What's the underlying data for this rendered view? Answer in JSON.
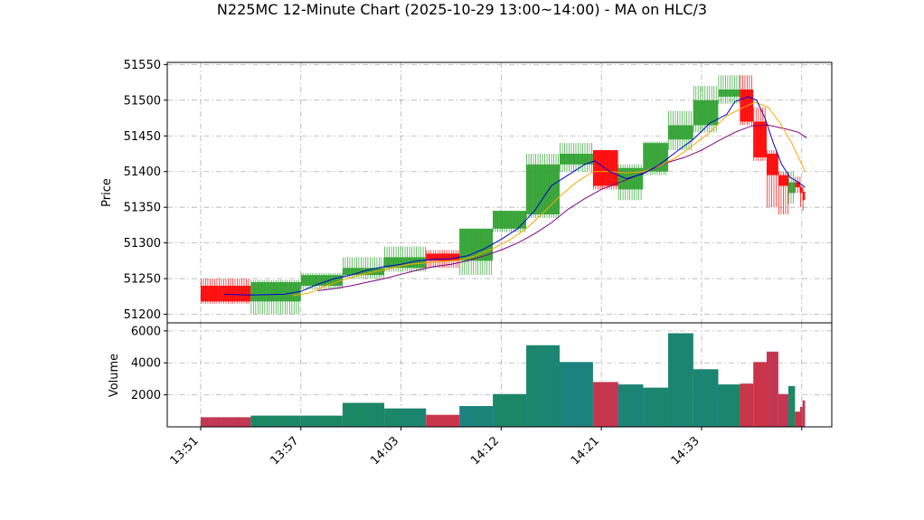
{
  "chart_data": {
    "type": "candlestick",
    "title": "N225MC 12-Minute Chart (2025-10-29 13:00~14:00) - MA on HLC/3",
    "ylabel_price": "Price",
    "ylabel_volume": "Volume",
    "price_ylim": [
      51188,
      51553
    ],
    "price_ticks": [
      51200,
      51250,
      51300,
      51350,
      51400,
      51450,
      51500,
      51550
    ],
    "volume_ylim": [
      0,
      6500
    ],
    "volume_ticks": [
      2000,
      4000,
      6000
    ],
    "x_tick_labels": [
      "13:51",
      "13:57",
      "14:03",
      "14:12",
      "14:21",
      "14:33"
    ],
    "x_tick_positions": [
      0,
      6,
      12,
      18,
      24,
      30
    ],
    "x_last_tick": 36,
    "x_range": [
      -2,
      37.8
    ],
    "up_color": "#2ca02c",
    "down_color": "#ff0000",
    "up_volume_color": "#1f77b4",
    "down_volume_color": "#d62728",
    "ma_colors": [
      "#0000cd",
      "#ffa500",
      "#800080"
    ],
    "candles": [
      {
        "start": 0,
        "end": 3,
        "open": 51240,
        "high": 51250,
        "low": 51215,
        "close": 51218,
        "volume": 600
      },
      {
        "start": 3,
        "end": 6,
        "open": 51218,
        "high": 51248,
        "low": 51200,
        "close": 51245,
        "volume": 700
      },
      {
        "start": 6,
        "end": 8.5,
        "open": 51240,
        "high": 51258,
        "low": 51235,
        "close": 51255,
        "volume": 700
      },
      {
        "start": 8.5,
        "end": 11,
        "open": 51255,
        "high": 51280,
        "low": 51250,
        "close": 51265,
        "volume": 1500
      },
      {
        "start": 11,
        "end": 13.5,
        "open": 51265,
        "high": 51295,
        "low": 51260,
        "close": 51280,
        "volume": 1150
      },
      {
        "start": 13.5,
        "end": 15.5,
        "open": 51285,
        "high": 51290,
        "low": 51265,
        "close": 51275,
        "volume": 750
      },
      {
        "start": 15.5,
        "end": 17.5,
        "open": 51275,
        "high": 51320,
        "low": 51255,
        "close": 51320,
        "volume": 1300
      },
      {
        "start": 17.5,
        "end": 19.5,
        "open": 51320,
        "high": 51345,
        "low": 51315,
        "close": 51345,
        "volume": 2050
      },
      {
        "start": 19.5,
        "end": 21.5,
        "open": 51340,
        "high": 51425,
        "low": 51335,
        "close": 51410,
        "volume": 5100
      },
      {
        "start": 21.5,
        "end": 23.5,
        "open": 51410,
        "high": 51440,
        "low": 51400,
        "close": 51425,
        "volume": 4050
      },
      {
        "start": 23.5,
        "end": 25.0,
        "open": 51430,
        "high": 51430,
        "low": 51375,
        "close": 51380,
        "volume": 2800
      },
      {
        "start": 25.0,
        "end": 26.5,
        "open": 51375,
        "high": 51410,
        "low": 51360,
        "close": 51405,
        "volume": 2650
      },
      {
        "start": 26.5,
        "end": 28.0,
        "open": 51400,
        "high": 51442,
        "low": 51395,
        "close": 51440,
        "volume": 2450
      },
      {
        "start": 28.0,
        "end": 29.5,
        "open": 51445,
        "high": 51485,
        "low": 51430,
        "close": 51465,
        "volume": 5850
      },
      {
        "start": 29.5,
        "end": 31.0,
        "open": 51465,
        "high": 51520,
        "low": 51455,
        "close": 51500,
        "volume": 3600
      },
      {
        "start": 31.0,
        "end": 32.3,
        "open": 51505,
        "high": 51535,
        "low": 51495,
        "close": 51515,
        "volume": 2650
      },
      {
        "start": 32.3,
        "end": 33.1,
        "open": 51515,
        "high": 51535,
        "low": 51465,
        "close": 51470,
        "volume": 2700
      },
      {
        "start": 33.1,
        "end": 33.9,
        "open": 51470,
        "high": 51490,
        "low": 51415,
        "close": 51420,
        "volume": 4050
      },
      {
        "start": 33.9,
        "end": 34.6,
        "open": 51425,
        "high": 51430,
        "low": 51350,
        "close": 51395,
        "volume": 4700
      },
      {
        "start": 34.6,
        "end": 35.2,
        "open": 51395,
        "high": 51400,
        "low": 51340,
        "close": 51380,
        "volume": 2050
      },
      {
        "start": 35.2,
        "end": 35.6,
        "open": 51370,
        "high": 51400,
        "low": 51355,
        "close": 51385,
        "volume": 2550
      },
      {
        "start": 35.6,
        "end": 35.9,
        "open": 51385,
        "high": 51393,
        "low": 51370,
        "close": 51378,
        "volume": 950
      },
      {
        "start": 35.9,
        "end": 36.05,
        "open": 51378,
        "high": 51380,
        "low": 51350,
        "close": 51370,
        "volume": 1250
      },
      {
        "start": 36.05,
        "end": 36.2,
        "open": 51372,
        "high": 51378,
        "low": 51345,
        "close": 51360,
        "volume": 1650
      }
    ],
    "ma_short": [
      [
        1.4,
        51228
      ],
      [
        3,
        51227
      ],
      [
        5,
        51228
      ],
      [
        6,
        51232
      ],
      [
        7,
        51242
      ],
      [
        8,
        51250
      ],
      [
        9,
        51255
      ],
      [
        10,
        51262
      ],
      [
        11,
        51267
      ],
      [
        12,
        51270
      ],
      [
        13,
        51275
      ],
      [
        14,
        51277
      ],
      [
        15,
        51278
      ],
      [
        16,
        51282
      ],
      [
        17,
        51292
      ],
      [
        18,
        51305
      ],
      [
        19,
        51320
      ],
      [
        20,
        51345
      ],
      [
        21,
        51380
      ],
      [
        22,
        51395
      ],
      [
        23,
        51410
      ],
      [
        23.6,
        51415
      ],
      [
        24.5,
        51400
      ],
      [
        25.5,
        51390
      ],
      [
        26.5,
        51397
      ],
      [
        27.5,
        51410
      ],
      [
        28.5,
        51428
      ],
      [
        29.5,
        51445
      ],
      [
        30.5,
        51468
      ],
      [
        31.5,
        51480
      ],
      [
        32,
        51498
      ],
      [
        32.8,
        51505
      ],
      [
        33.3,
        51500
      ],
      [
        33.8,
        51475
      ],
      [
        34.3,
        51440
      ],
      [
        34.8,
        51410
      ],
      [
        35.3,
        51392
      ],
      [
        35.8,
        51385
      ],
      [
        36.2,
        51378
      ]
    ],
    "ma_mid": [
      [
        5.5,
        51226
      ],
      [
        6.5,
        51230
      ],
      [
        7.5,
        51240
      ],
      [
        8.5,
        51248
      ],
      [
        9.5,
        51255
      ],
      [
        10.5,
        51260
      ],
      [
        11.5,
        51265
      ],
      [
        12.5,
        51270
      ],
      [
        13.5,
        51272
      ],
      [
        14.5,
        51274
      ],
      [
        15.5,
        51276
      ],
      [
        16.5,
        51282
      ],
      [
        17.5,
        51292
      ],
      [
        18.5,
        51304
      ],
      [
        19.5,
        51320
      ],
      [
        20.5,
        51342
      ],
      [
        21.5,
        51365
      ],
      [
        22.5,
        51385
      ],
      [
        23.5,
        51400
      ],
      [
        24.5,
        51400
      ],
      [
        25.5,
        51398
      ],
      [
        26.5,
        51400
      ],
      [
        27.5,
        51408
      ],
      [
        28.5,
        51420
      ],
      [
        29.5,
        51437
      ],
      [
        30.5,
        51455
      ],
      [
        31.5,
        51478
      ],
      [
        32.5,
        51490
      ],
      [
        33.2,
        51497
      ],
      [
        34,
        51490
      ],
      [
        34.7,
        51468
      ],
      [
        35.4,
        51440
      ],
      [
        36.2,
        51400
      ]
    ],
    "ma_long": [
      [
        7,
        51233
      ],
      [
        8,
        51236
      ],
      [
        9,
        51240
      ],
      [
        10,
        51245
      ],
      [
        11,
        51250
      ],
      [
        12,
        51256
      ],
      [
        13,
        51262
      ],
      [
        14,
        51267
      ],
      [
        15,
        51270
      ],
      [
        16,
        51275
      ],
      [
        17,
        51282
      ],
      [
        18,
        51290
      ],
      [
        19,
        51300
      ],
      [
        20,
        51313
      ],
      [
        21,
        51328
      ],
      [
        22,
        51347
      ],
      [
        23,
        51362
      ],
      [
        24,
        51375
      ],
      [
        25,
        51384
      ],
      [
        26,
        51393
      ],
      [
        27,
        51403
      ],
      [
        28,
        51413
      ],
      [
        29,
        51420
      ],
      [
        30,
        51430
      ],
      [
        31,
        51443
      ],
      [
        32,
        51455
      ],
      [
        33,
        51464
      ],
      [
        34,
        51465
      ],
      [
        35,
        51460
      ],
      [
        35.8,
        51455
      ],
      [
        36.3,
        51447
      ]
    ]
  }
}
